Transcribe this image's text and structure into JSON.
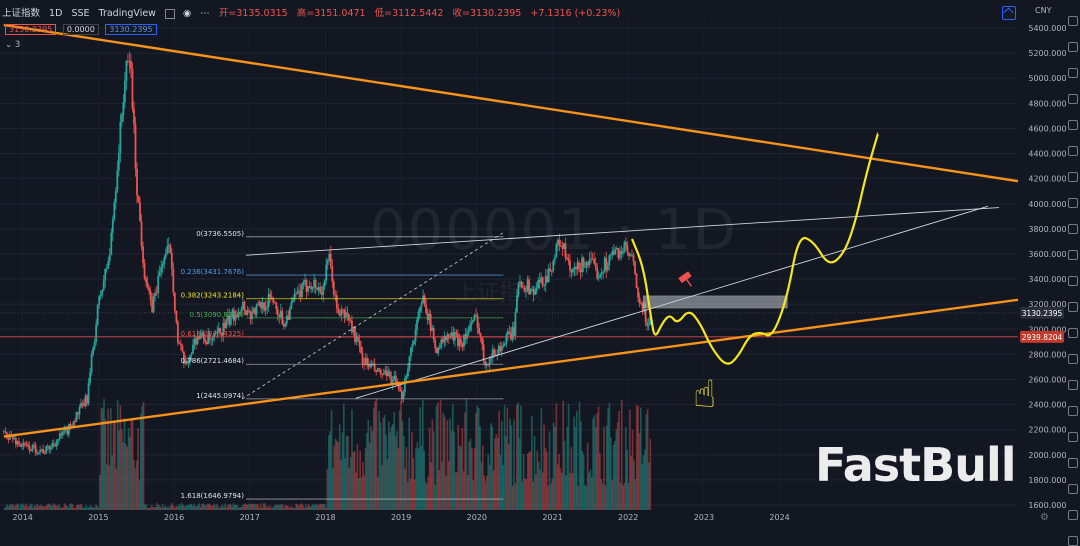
{
  "header": {
    "symbol": "上证指数",
    "interval": "1D",
    "exchange": "SSE",
    "source": "TradingView",
    "open": "开=3135.0315",
    "high": "高=3151.0471",
    "low": "低=3112.5442",
    "close": "收=3130.2395",
    "change": "+7.1316 (+0.23%)"
  },
  "price_boxes": [
    "3130.2395",
    "0.0000",
    "3130.2395"
  ],
  "indicator_count": "3",
  "currency": "CNY",
  "watermark": {
    "code": "000001 · 1D",
    "name": "上证指数"
  },
  "brand": "FastBull",
  "colors": {
    "bg": "#131722",
    "up": "#26a69a",
    "down": "#ef5350",
    "trend": "#f7931a",
    "projection": "#f5e61e",
    "fib_red": "#ef5350"
  },
  "chart_data": {
    "type": "line",
    "x_ticks": [
      "2014",
      "2015",
      "2016",
      "2017",
      "2018",
      "2019",
      "2020",
      "2021",
      "2022",
      "2023",
      "2024"
    ],
    "y_ticks": [
      "5400.0000",
      "5200.0000",
      "5000.0000",
      "4800.0000",
      "4600.0000",
      "4400.0000",
      "4200.0000",
      "4000.0000",
      "3800.0000",
      "3600.0000",
      "3400.0000",
      "3200.0000",
      "3000.0000",
      "2800.0000",
      "2600.0000",
      "2400.0000",
      "2200.0000",
      "2000.0000",
      "1800.0000",
      "1600.0000"
    ],
    "ylim": [
      1560,
      5480
    ],
    "xlim": [
      2013.7,
      2027.15
    ],
    "price_series": [
      [
        2013.75,
        2180
      ],
      [
        2014.0,
        2070
      ],
      [
        2014.3,
        2030
      ],
      [
        2014.6,
        2200
      ],
      [
        2014.85,
        2450
      ],
      [
        2015.0,
        3200
      ],
      [
        2015.15,
        3600
      ],
      [
        2015.25,
        4300
      ],
      [
        2015.35,
        5000
      ],
      [
        2015.42,
        5178
      ],
      [
        2015.5,
        4200
      ],
      [
        2015.6,
        3500
      ],
      [
        2015.7,
        3150
      ],
      [
        2015.85,
        3550
      ],
      [
        2015.95,
        3650
      ],
      [
        2016.05,
        2900
      ],
      [
        2016.15,
        2700
      ],
      [
        2016.3,
        2950
      ],
      [
        2016.5,
        2900
      ],
      [
        2016.7,
        3050
      ],
      [
        2016.9,
        3200
      ],
      [
        2017.0,
        3120
      ],
      [
        2017.3,
        3250
      ],
      [
        2017.45,
        3050
      ],
      [
        2017.6,
        3250
      ],
      [
        2017.8,
        3380
      ],
      [
        2017.95,
        3300
      ],
      [
        2018.05,
        3560
      ],
      [
        2018.15,
        3150
      ],
      [
        2018.3,
        3100
      ],
      [
        2018.5,
        2750
      ],
      [
        2018.7,
        2650
      ],
      [
        2018.9,
        2600
      ],
      [
        2019.0,
        2450
      ],
      [
        2019.15,
        2900
      ],
      [
        2019.3,
        3270
      ],
      [
        2019.45,
        2850
      ],
      [
        2019.65,
        2950
      ],
      [
        2019.8,
        2900
      ],
      [
        2020.0,
        3100
      ],
      [
        2020.1,
        2740
      ],
      [
        2020.3,
        2850
      ],
      [
        2020.5,
        3000
      ],
      [
        2020.55,
        3400
      ],
      [
        2020.75,
        3300
      ],
      [
        2020.95,
        3450
      ],
      [
        2021.1,
        3720
      ],
      [
        2021.25,
        3430
      ],
      [
        2021.45,
        3550
      ],
      [
        2021.6,
        3450
      ],
      [
        2021.8,
        3600
      ],
      [
        2021.95,
        3640
      ],
      [
        2022.05,
        3550
      ],
      [
        2022.15,
        3200
      ],
      [
        2022.25,
        3050
      ],
      [
        2022.3,
        3130
      ]
    ],
    "fib_levels": [
      {
        "label": "0(3736.5505)",
        "value": 3736.55
      },
      {
        "label": "0.236(3431.7676)",
        "value": 3431.77
      },
      {
        "label": "0.382(3243.2184)",
        "value": 3243.22
      },
      {
        "label": "0.5(3090.8240)",
        "value": 3090.82
      },
      {
        "label": "0.618(2938.4325)",
        "value": 2938.43
      },
      {
        "label": "0.786(2721.4684)",
        "value": 2721.47
      },
      {
        "label": "1(2445.0974)",
        "value": 2445.1
      },
      {
        "label": "1.618(1646.9794)",
        "value": 1646.98
      }
    ],
    "price_labels": [
      {
        "label": "3130.2395",
        "value": 3130.24
      },
      {
        "label": "2939.8204",
        "value": 2939.82
      }
    ],
    "trendlines": [
      {
        "name": "upper-orange",
        "points": [
          [
            2013.75,
            5425
          ],
          [
            2027.15,
            4180
          ]
        ]
      },
      {
        "name": "lower-orange",
        "points": [
          [
            2013.75,
            2145
          ],
          [
            2027.15,
            3235
          ]
        ]
      }
    ],
    "projection_path": [
      [
        2022.05,
        3720
      ],
      [
        2022.2,
        3500
      ],
      [
        2022.3,
        3100
      ],
      [
        2022.35,
        2920
      ],
      [
        2022.45,
        3050
      ],
      [
        2022.55,
        3120
      ],
      [
        2022.65,
        3040
      ],
      [
        2022.8,
        3160
      ],
      [
        2022.95,
        3050
      ],
      [
        2023.1,
        2850
      ],
      [
        2023.3,
        2700
      ],
      [
        2023.45,
        2780
      ],
      [
        2023.6,
        2950
      ],
      [
        2023.75,
        2980
      ],
      [
        2023.9,
        2930
      ],
      [
        2024.1,
        3250
      ],
      [
        2024.25,
        3750
      ],
      [
        2024.45,
        3700
      ],
      [
        2024.65,
        3500
      ],
      [
        2024.85,
        3600
      ],
      [
        2025.0,
        3850
      ],
      [
        2025.15,
        4250
      ],
      [
        2025.3,
        4560
      ]
    ]
  }
}
